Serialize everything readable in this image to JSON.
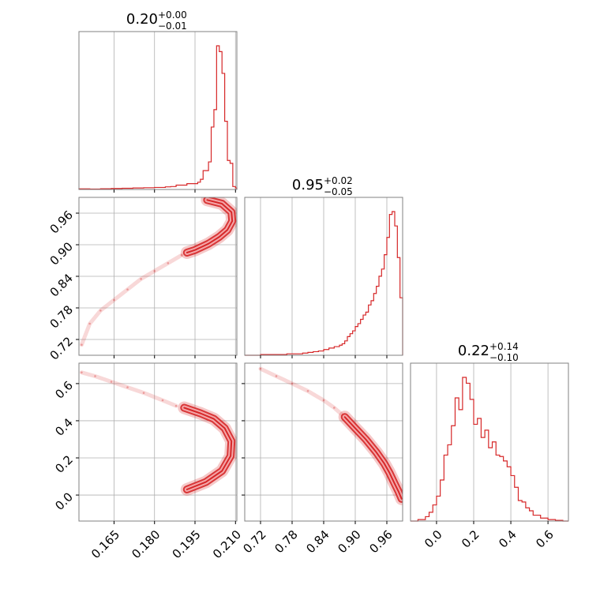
{
  "chart_data": {
    "type": "corner",
    "color": "#d62728",
    "grid": true,
    "parameters": [
      {
        "title": {
          "median": "0.20",
          "plus": "+0.00",
          "minus": "−0.01"
        },
        "range": [
          0.152,
          0.2105
        ],
        "ticks": [
          0.165,
          0.18,
          0.195,
          0.21
        ],
        "tick_labels": [
          "0.165",
          "0.180",
          "0.195",
          "0.210"
        ]
      },
      {
        "title": {
          "median": "0.95",
          "plus": "+0.02",
          "minus": "−0.05"
        },
        "range": [
          0.69,
          0.99
        ],
        "ticks": [
          0.72,
          0.78,
          0.84,
          0.9,
          0.96
        ],
        "tick_labels": [
          "0.72",
          "0.78",
          "0.84",
          "0.90",
          "0.96"
        ]
      },
      {
        "title": {
          "median": "0.22",
          "plus": "+0.14",
          "minus": "−0.10"
        },
        "range": [
          -0.14,
          0.71
        ],
        "ticks": [
          0.0,
          0.2,
          0.4,
          0.6
        ],
        "tick_labels": [
          "0.0",
          "0.2",
          "0.4",
          "0.6"
        ]
      }
    ],
    "histograms": [
      {
        "param": 0,
        "edges": [
          0.152,
          0.156,
          0.16,
          0.164,
          0.168,
          0.172,
          0.176,
          0.18,
          0.184,
          0.186,
          0.188,
          0.19,
          0.192,
          0.194,
          0.196,
          0.197,
          0.198,
          0.199,
          0.2,
          0.201,
          0.202,
          0.203,
          0.204,
          0.205,
          0.206,
          0.207,
          0.208,
          0.209,
          0.21,
          0.2105
        ],
        "counts": [
          0.004,
          0.003,
          0.005,
          0.007,
          0.008,
          0.01,
          0.012,
          0.014,
          0.018,
          0.02,
          0.03,
          0.03,
          0.04,
          0.04,
          0.05,
          0.07,
          0.13,
          0.13,
          0.19,
          0.43,
          0.55,
          0.99,
          0.95,
          0.8,
          0.47,
          0.2,
          0.18,
          0.02,
          0.01
        ]
      },
      {
        "param": 1,
        "edges": [
          0.69,
          0.7,
          0.71,
          0.72,
          0.73,
          0.74,
          0.75,
          0.76,
          0.77,
          0.78,
          0.79,
          0.8,
          0.81,
          0.82,
          0.83,
          0.84,
          0.85,
          0.86,
          0.87,
          0.875,
          0.88,
          0.885,
          0.89,
          0.895,
          0.9,
          0.905,
          0.91,
          0.915,
          0.92,
          0.925,
          0.93,
          0.935,
          0.94,
          0.945,
          0.95,
          0.955,
          0.96,
          0.965,
          0.97,
          0.975,
          0.98,
          0.985,
          0.99
        ],
        "counts": [
          0.0,
          0.0,
          0.0,
          0.005,
          0.005,
          0.005,
          0.005,
          0.005,
          0.01,
          0.01,
          0.01,
          0.015,
          0.02,
          0.025,
          0.03,
          0.04,
          0.05,
          0.06,
          0.07,
          0.08,
          0.1,
          0.13,
          0.15,
          0.17,
          0.2,
          0.22,
          0.25,
          0.28,
          0.3,
          0.35,
          0.38,
          0.43,
          0.48,
          0.55,
          0.6,
          0.7,
          0.82,
          0.98,
          1.0,
          0.9,
          0.68,
          0.4
        ]
      },
      {
        "param": 2,
        "edges": [
          -0.14,
          -0.1,
          -0.06,
          -0.04,
          -0.02,
          0.0,
          0.02,
          0.04,
          0.06,
          0.08,
          0.1,
          0.12,
          0.14,
          0.16,
          0.18,
          0.2,
          0.22,
          0.24,
          0.26,
          0.28,
          0.3,
          0.32,
          0.34,
          0.36,
          0.38,
          0.4,
          0.42,
          0.44,
          0.46,
          0.48,
          0.5,
          0.52,
          0.54,
          0.56,
          0.58,
          0.6,
          0.62,
          0.64,
          0.66,
          0.68,
          0.71
        ],
        "counts": [
          0.0,
          0.01,
          0.03,
          0.06,
          0.11,
          0.17,
          0.28,
          0.45,
          0.52,
          0.65,
          0.84,
          0.76,
          0.98,
          0.94,
          0.83,
          0.66,
          0.7,
          0.57,
          0.62,
          0.5,
          0.54,
          0.45,
          0.44,
          0.41,
          0.37,
          0.31,
          0.23,
          0.14,
          0.13,
          0.09,
          0.07,
          0.04,
          0.04,
          0.02,
          0.02,
          0.01,
          0.01,
          0.005,
          0.005,
          0.0
        ]
      }
    ],
    "density_panels": [
      {
        "x_param": 0,
        "y_param": 1,
        "ridge": [
          [
            0.1995,
            0.985
          ],
          [
            0.205,
            0.978
          ],
          [
            0.2085,
            0.962
          ],
          [
            0.2088,
            0.945
          ],
          [
            0.207,
            0.928
          ],
          [
            0.204,
            0.915
          ],
          [
            0.2,
            0.902
          ],
          [
            0.195,
            0.89
          ],
          [
            0.192,
            0.885
          ]
        ],
        "tail": [
          [
            0.19,
            0.88
          ],
          [
            0.185,
            0.865
          ],
          [
            0.18,
            0.85
          ],
          [
            0.175,
            0.835
          ],
          [
            0.17,
            0.815
          ],
          [
            0.165,
            0.795
          ],
          [
            0.16,
            0.775
          ],
          [
            0.156,
            0.75
          ],
          [
            0.153,
            0.71
          ]
        ]
      },
      {
        "x_param": 0,
        "y_param": 2,
        "ridge": [
          [
            0.192,
            0.03
          ],
          [
            0.199,
            0.07
          ],
          [
            0.205,
            0.13
          ],
          [
            0.2082,
            0.21
          ],
          [
            0.2085,
            0.29
          ],
          [
            0.206,
            0.36
          ],
          [
            0.202,
            0.41
          ],
          [
            0.197,
            0.44
          ],
          [
            0.191,
            0.47
          ]
        ],
        "tail": [
          [
            0.188,
            0.48
          ],
          [
            0.183,
            0.51
          ],
          [
            0.176,
            0.55
          ],
          [
            0.17,
            0.58
          ],
          [
            0.164,
            0.61
          ],
          [
            0.158,
            0.64
          ],
          [
            0.153,
            0.66
          ]
        ]
      },
      {
        "x_param": 1,
        "y_param": 2,
        "ridge": [
          [
            0.88,
            0.42
          ],
          [
            0.9,
            0.36
          ],
          [
            0.92,
            0.3
          ],
          [
            0.94,
            0.23
          ],
          [
            0.955,
            0.17
          ],
          [
            0.965,
            0.12
          ],
          [
            0.975,
            0.06
          ],
          [
            0.982,
            0.02
          ],
          [
            0.988,
            -0.02
          ]
        ],
        "tail": [
          [
            0.72,
            0.68
          ],
          [
            0.75,
            0.64
          ],
          [
            0.78,
            0.6
          ],
          [
            0.81,
            0.56
          ],
          [
            0.84,
            0.51
          ],
          [
            0.86,
            0.47
          ],
          [
            0.88,
            0.42
          ]
        ]
      }
    ]
  }
}
